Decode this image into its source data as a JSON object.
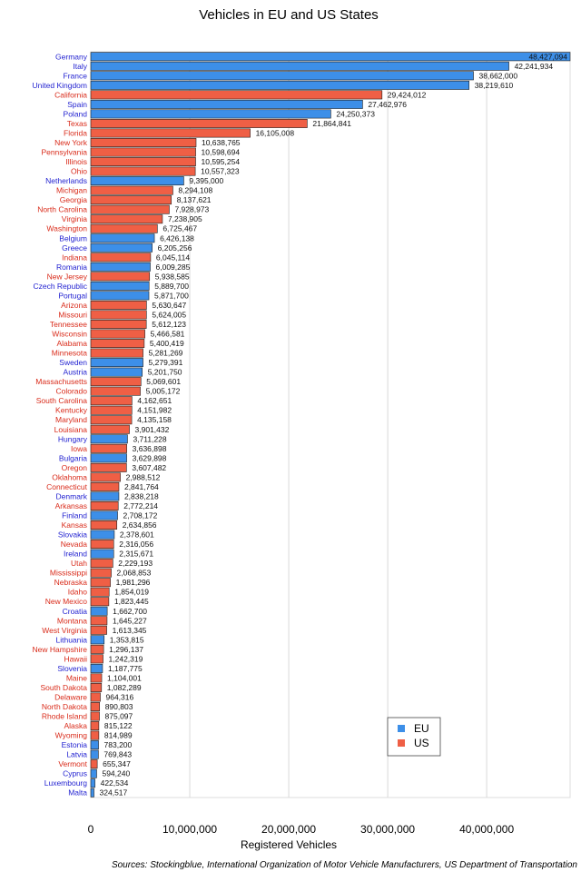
{
  "chart_data": {
    "type": "bar",
    "orientation": "horizontal",
    "title": "Vehicles in EU and US States",
    "xlabel": "Registered Vehicles",
    "ylabel": "",
    "source": "Sources: Stockingblue, International Organization of Motor Vehicle Manufacturers, US Department of Transportation",
    "xlim": [
      0,
      48427094
    ],
    "xticks": [
      0,
      10000000,
      20000000,
      30000000,
      40000000
    ],
    "xtick_labels": [
      "0",
      "10,000,000",
      "20,000,000",
      "30,000,000",
      "40,000,000"
    ],
    "grid": true,
    "legend": {
      "position": "bottom-right",
      "entries": [
        {
          "name": "EU",
          "color": "#3d8fe8"
        },
        {
          "name": "US",
          "color": "#ef5f45"
        }
      ]
    },
    "colors": {
      "EU": "#3d8fe8",
      "US": "#ef5f45",
      "EU_label": "#1f1fd0",
      "US_label": "#d92b1a"
    },
    "bars": [
      {
        "label": "Germany",
        "group": "EU",
        "value": 48427094,
        "value_label": "48,427,094"
      },
      {
        "label": "Italy",
        "group": "EU",
        "value": 42241934,
        "value_label": "42,241,934"
      },
      {
        "label": "France",
        "group": "EU",
        "value": 38662000,
        "value_label": "38,662,000"
      },
      {
        "label": "United Kingdom",
        "group": "EU",
        "value": 38219610,
        "value_label": "38,219,610"
      },
      {
        "label": "California",
        "group": "US",
        "value": 29424012,
        "value_label": "29,424,012"
      },
      {
        "label": "Spain",
        "group": "EU",
        "value": 27462976,
        "value_label": "27,462,976"
      },
      {
        "label": "Poland",
        "group": "EU",
        "value": 24250373,
        "value_label": "24,250,373"
      },
      {
        "label": "Texas",
        "group": "US",
        "value": 21864841,
        "value_label": "21,864,841"
      },
      {
        "label": "Florida",
        "group": "US",
        "value": 16105008,
        "value_label": "16,105,008"
      },
      {
        "label": "New York",
        "group": "US",
        "value": 10638765,
        "value_label": "10,638,765"
      },
      {
        "label": "Pennsylvania",
        "group": "US",
        "value": 10598694,
        "value_label": "10,598,694"
      },
      {
        "label": "Illinois",
        "group": "US",
        "value": 10595254,
        "value_label": "10,595,254"
      },
      {
        "label": "Ohio",
        "group": "US",
        "value": 10557323,
        "value_label": "10,557,323"
      },
      {
        "label": "Netherlands",
        "group": "EU",
        "value": 9395000,
        "value_label": "9,395,000"
      },
      {
        "label": "Michigan",
        "group": "US",
        "value": 8294108,
        "value_label": "8,294,108"
      },
      {
        "label": "Georgia",
        "group": "US",
        "value": 8137621,
        "value_label": "8,137,621"
      },
      {
        "label": "North Carolina",
        "group": "US",
        "value": 7928973,
        "value_label": "7,928,973"
      },
      {
        "label": "Virginia",
        "group": "US",
        "value": 7238905,
        "value_label": "7,238,905"
      },
      {
        "label": "Washington",
        "group": "US",
        "value": 6725467,
        "value_label": "6,725,467"
      },
      {
        "label": "Belgium",
        "group": "EU",
        "value": 6426138,
        "value_label": "6,426,138"
      },
      {
        "label": "Greece",
        "group": "EU",
        "value": 6205256,
        "value_label": "6,205,256"
      },
      {
        "label": "Indiana",
        "group": "US",
        "value": 6045114,
        "value_label": "6,045,114"
      },
      {
        "label": "Romania",
        "group": "EU",
        "value": 6009285,
        "value_label": "6,009,285"
      },
      {
        "label": "New Jersey",
        "group": "US",
        "value": 5938585,
        "value_label": "5,938,585"
      },
      {
        "label": "Czech Republic",
        "group": "EU",
        "value": 5889700,
        "value_label": "5,889,700"
      },
      {
        "label": "Portugal",
        "group": "EU",
        "value": 5871700,
        "value_label": "5,871,700"
      },
      {
        "label": "Arizona",
        "group": "US",
        "value": 5630647,
        "value_label": "5,630,647"
      },
      {
        "label": "Missouri",
        "group": "US",
        "value": 5624005,
        "value_label": "5,624,005"
      },
      {
        "label": "Tennessee",
        "group": "US",
        "value": 5612123,
        "value_label": "5,612,123"
      },
      {
        "label": "Wisconsin",
        "group": "US",
        "value": 5466581,
        "value_label": "5,466,581"
      },
      {
        "label": "Alabama",
        "group": "US",
        "value": 5400419,
        "value_label": "5,400,419"
      },
      {
        "label": "Minnesota",
        "group": "US",
        "value": 5281269,
        "value_label": "5,281,269"
      },
      {
        "label": "Sweden",
        "group": "EU",
        "value": 5279391,
        "value_label": "5,279,391"
      },
      {
        "label": "Austria",
        "group": "EU",
        "value": 5201750,
        "value_label": "5,201,750"
      },
      {
        "label": "Massachusetts",
        "group": "US",
        "value": 5069601,
        "value_label": "5,069,601"
      },
      {
        "label": "Colorado",
        "group": "US",
        "value": 5005172,
        "value_label": "5,005,172"
      },
      {
        "label": "South Carolina",
        "group": "US",
        "value": 4162651,
        "value_label": "4,162,651"
      },
      {
        "label": "Kentucky",
        "group": "US",
        "value": 4151982,
        "value_label": "4,151,982"
      },
      {
        "label": "Maryland",
        "group": "US",
        "value": 4135158,
        "value_label": "4,135,158"
      },
      {
        "label": "Louisiana",
        "group": "US",
        "value": 3901432,
        "value_label": "3,901,432"
      },
      {
        "label": "Hungary",
        "group": "EU",
        "value": 3711228,
        "value_label": "3,711,228"
      },
      {
        "label": "Iowa",
        "group": "US",
        "value": 3636898,
        "value_label": "3,636,898"
      },
      {
        "label": "Bulgaria",
        "group": "EU",
        "value": 3629898,
        "value_label": "3,629,898"
      },
      {
        "label": "Oregon",
        "group": "US",
        "value": 3607482,
        "value_label": "3,607,482"
      },
      {
        "label": "Oklahoma",
        "group": "US",
        "value": 2988512,
        "value_label": "2,988,512"
      },
      {
        "label": "Connecticut",
        "group": "US",
        "value": 2841764,
        "value_label": "2,841,764"
      },
      {
        "label": "Denmark",
        "group": "EU",
        "value": 2838218,
        "value_label": "2,838,218"
      },
      {
        "label": "Arkansas",
        "group": "US",
        "value": 2772214,
        "value_label": "2,772,214"
      },
      {
        "label": "Finland",
        "group": "EU",
        "value": 2708172,
        "value_label": "2,708,172"
      },
      {
        "label": "Kansas",
        "group": "US",
        "value": 2634856,
        "value_label": "2,634,856"
      },
      {
        "label": "Slovakia",
        "group": "EU",
        "value": 2378601,
        "value_label": "2,378,601"
      },
      {
        "label": "Nevada",
        "group": "US",
        "value": 2316056,
        "value_label": "2,316,056"
      },
      {
        "label": "Ireland",
        "group": "EU",
        "value": 2315671,
        "value_label": "2,315,671"
      },
      {
        "label": "Utah",
        "group": "US",
        "value": 2229193,
        "value_label": "2,229,193"
      },
      {
        "label": "Mississippi",
        "group": "US",
        "value": 2068853,
        "value_label": "2,068,853"
      },
      {
        "label": "Nebraska",
        "group": "US",
        "value": 1981296,
        "value_label": "1,981,296"
      },
      {
        "label": "Idaho",
        "group": "US",
        "value": 1854019,
        "value_label": "1,854,019"
      },
      {
        "label": "New Mexico",
        "group": "US",
        "value": 1823445,
        "value_label": "1,823,445"
      },
      {
        "label": "Croatia",
        "group": "EU",
        "value": 1662700,
        "value_label": "1,662,700"
      },
      {
        "label": "Montana",
        "group": "US",
        "value": 1645227,
        "value_label": "1,645,227"
      },
      {
        "label": "West Virginia",
        "group": "US",
        "value": 1613345,
        "value_label": "1,613,345"
      },
      {
        "label": "Lithuania",
        "group": "EU",
        "value": 1353815,
        "value_label": "1,353,815"
      },
      {
        "label": "New Hampshire",
        "group": "US",
        "value": 1296137,
        "value_label": "1,296,137"
      },
      {
        "label": "Hawaii",
        "group": "US",
        "value": 1242319,
        "value_label": "1,242,319"
      },
      {
        "label": "Slovenia",
        "group": "EU",
        "value": 1187775,
        "value_label": "1,187,775"
      },
      {
        "label": "Maine",
        "group": "US",
        "value": 1104001,
        "value_label": "1,104,001"
      },
      {
        "label": "South Dakota",
        "group": "US",
        "value": 1082289,
        "value_label": "1,082,289"
      },
      {
        "label": "Delaware",
        "group": "US",
        "value": 964316,
        "value_label": "964,316"
      },
      {
        "label": "North Dakota",
        "group": "US",
        "value": 890803,
        "value_label": "890,803"
      },
      {
        "label": "Rhode Island",
        "group": "US",
        "value": 875097,
        "value_label": "875,097"
      },
      {
        "label": "Alaska",
        "group": "US",
        "value": 815122,
        "value_label": "815,122"
      },
      {
        "label": "Wyoming",
        "group": "US",
        "value": 814989,
        "value_label": "814,989"
      },
      {
        "label": "Estonia",
        "group": "EU",
        "value": 783200,
        "value_label": "783,200"
      },
      {
        "label": "Latvia",
        "group": "EU",
        "value": 769843,
        "value_label": "769,843"
      },
      {
        "label": "Vermont",
        "group": "US",
        "value": 655347,
        "value_label": "655,347"
      },
      {
        "label": "Cyprus",
        "group": "EU",
        "value": 594240,
        "value_label": "594,240"
      },
      {
        "label": "Luxembourg",
        "group": "EU",
        "value": 422534,
        "value_label": "422,534"
      },
      {
        "label": "Malta",
        "group": "EU",
        "value": 324517,
        "value_label": "324,517"
      }
    ]
  }
}
